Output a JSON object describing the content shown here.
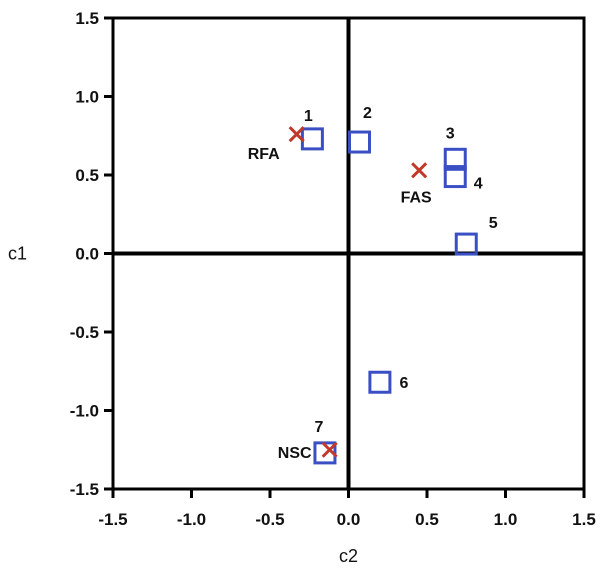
{
  "chart_data": {
    "type": "scatter",
    "title": "",
    "xlabel": "c2",
    "ylabel": "c1",
    "xlim": [
      -1.5,
      1.5
    ],
    "ylim": [
      -1.5,
      1.5
    ],
    "xticks": [
      -1.5,
      -1.0,
      -0.5,
      0.0,
      0.5,
      1.0,
      1.5
    ],
    "yticks": [
      -1.5,
      -1.0,
      -0.5,
      0.0,
      0.5,
      1.0,
      1.5
    ],
    "xtick_labels": [
      "-1.5",
      "-1.0",
      "-0.5",
      "0.0",
      "0.5",
      "1.0",
      "1.5"
    ],
    "ytick_labels": [
      "-1.5",
      "-1.0",
      "-0.5",
      "0.0",
      "0.5",
      "1.0",
      "1.5"
    ],
    "grid": false,
    "legend": "none",
    "colors": {
      "squares": "#3a4fc4",
      "crosses": "#c0392b",
      "axes": "#000000"
    },
    "series": [
      {
        "marker": "square",
        "points": [
          {
            "label": "1",
            "x": -0.23,
            "y": 0.73
          },
          {
            "label": "2",
            "x": 0.07,
            "y": 0.71
          },
          {
            "label": "3",
            "x": 0.68,
            "y": 0.6
          },
          {
            "label": "4",
            "x": 0.68,
            "y": 0.49
          },
          {
            "label": "5",
            "x": 0.75,
            "y": 0.06
          },
          {
            "label": "6",
            "x": 0.2,
            "y": -0.82
          },
          {
            "label": "7",
            "x": -0.15,
            "y": -1.27
          }
        ]
      },
      {
        "marker": "cross",
        "points": [
          {
            "label": "RFA",
            "x": -0.33,
            "y": 0.76
          },
          {
            "label": "FAS",
            "x": 0.45,
            "y": 0.53
          },
          {
            "label": "NSC",
            "x": -0.12,
            "y": -1.25
          }
        ]
      }
    ]
  }
}
